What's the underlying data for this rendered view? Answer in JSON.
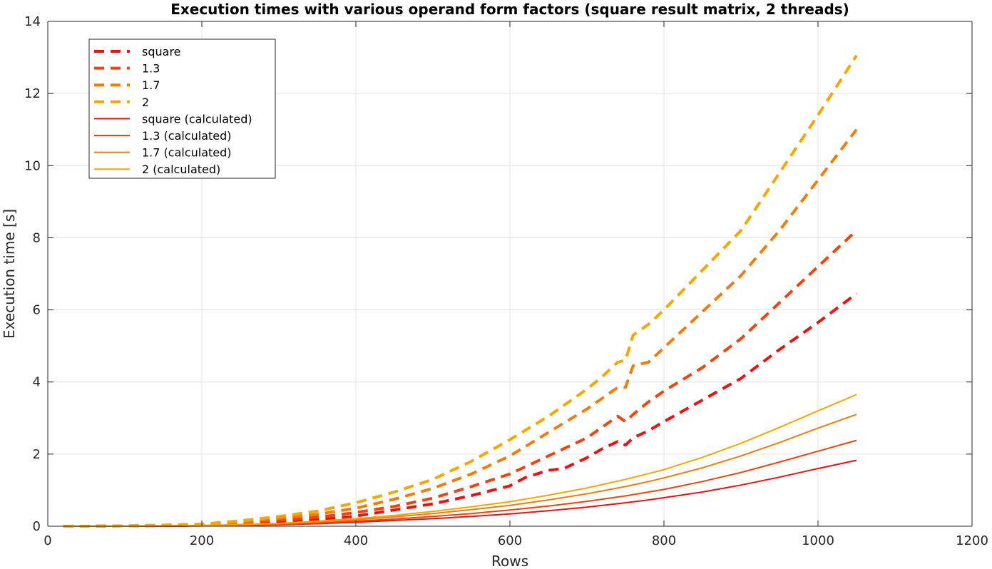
{
  "chart_data": {
    "type": "line",
    "title": "Execution times with various operand form factors (square result matrix, 2 threads)",
    "xlabel": "Rows",
    "ylabel": "Execution time [s]",
    "xlim": [
      0,
      1200
    ],
    "ylim": [
      0,
      14
    ],
    "xticks": [
      0,
      200,
      400,
      600,
      800,
      1000,
      1200
    ],
    "yticks": [
      0,
      2,
      4,
      6,
      8,
      10,
      12,
      14
    ],
    "grid": true,
    "legend_position": "top-left",
    "series": [
      {
        "name": "square",
        "style": "dashed",
        "color": "#ee1111",
        "x": [
          20,
          50,
          100,
          150,
          200,
          250,
          300,
          350,
          400,
          450,
          500,
          550,
          600,
          620,
          650,
          670,
          700,
          720,
          740,
          750,
          760,
          780,
          800,
          850,
          900,
          950,
          1000,
          1050
        ],
        "y": [
          0.0,
          0.0,
          0.01,
          0.02,
          0.03,
          0.07,
          0.12,
          0.18,
          0.28,
          0.45,
          0.62,
          0.85,
          1.12,
          1.35,
          1.55,
          1.6,
          1.9,
          2.15,
          2.35,
          2.25,
          2.45,
          2.65,
          2.9,
          3.5,
          4.1,
          4.9,
          5.65,
          6.45
        ]
      },
      {
        "name": "1.3",
        "style": "dashed",
        "color": "#ee4411",
        "x": [
          20,
          50,
          100,
          150,
          200,
          250,
          300,
          350,
          400,
          450,
          500,
          550,
          600,
          650,
          700,
          720,
          740,
          750,
          760,
          780,
          800,
          850,
          900,
          950,
          1000,
          1050
        ],
        "y": [
          0.0,
          0.0,
          0.01,
          0.02,
          0.04,
          0.09,
          0.17,
          0.25,
          0.38,
          0.55,
          0.78,
          1.1,
          1.45,
          1.95,
          2.45,
          2.75,
          3.05,
          2.9,
          3.1,
          3.45,
          3.75,
          4.4,
          5.2,
          6.2,
          7.2,
          8.2
        ]
      },
      {
        "name": "1.7",
        "style": "dashed",
        "color": "#f07c0e",
        "x": [
          20,
          50,
          100,
          150,
          200,
          250,
          300,
          350,
          400,
          450,
          500,
          550,
          600,
          650,
          700,
          720,
          740,
          750,
          760,
          780,
          800,
          850,
          900,
          950,
          1000,
          1050
        ],
        "y": [
          0.0,
          0.0,
          0.01,
          0.03,
          0.05,
          0.12,
          0.22,
          0.33,
          0.5,
          0.75,
          1.05,
          1.45,
          1.95,
          2.6,
          3.25,
          3.55,
          3.85,
          3.85,
          4.45,
          4.55,
          4.95,
          5.95,
          6.95,
          8.2,
          9.6,
          11.0
        ]
      },
      {
        "name": "2",
        "style": "dashed",
        "color": "#f5a600",
        "x": [
          20,
          50,
          100,
          150,
          200,
          250,
          300,
          350,
          400,
          450,
          500,
          550,
          600,
          650,
          700,
          720,
          740,
          750,
          760,
          780,
          800,
          850,
          900,
          950,
          1000,
          1050
        ],
        "y": [
          0.0,
          0.0,
          0.01,
          0.03,
          0.06,
          0.15,
          0.27,
          0.42,
          0.65,
          0.95,
          1.3,
          1.8,
          2.4,
          3.05,
          3.8,
          4.15,
          4.55,
          4.6,
          5.3,
          5.6,
          6.0,
          7.1,
          8.2,
          9.8,
          11.4,
          13.05
        ]
      },
      {
        "name": "square (calculated)",
        "style": "solid",
        "color": "#ee1111",
        "x": [
          20,
          50,
          100,
          150,
          200,
          250,
          300,
          350,
          400,
          450,
          500,
          550,
          600,
          650,
          700,
          750,
          780,
          800,
          850,
          900,
          950,
          1000,
          1050
        ],
        "y": [
          0.0,
          0.0,
          0.0,
          0.0,
          0.01,
          0.02,
          0.04,
          0.07,
          0.11,
          0.16,
          0.21,
          0.27,
          0.34,
          0.43,
          0.53,
          0.65,
          0.73,
          0.79,
          0.95,
          1.14,
          1.36,
          1.6,
          1.83
        ]
      },
      {
        "name": "1.3 (calculated)",
        "style": "solid",
        "color": "#ee4411",
        "x": [
          20,
          50,
          100,
          150,
          200,
          250,
          300,
          350,
          400,
          450,
          500,
          550,
          600,
          650,
          700,
          750,
          780,
          800,
          850,
          900,
          950,
          1000,
          1050
        ],
        "y": [
          0.0,
          0.0,
          0.0,
          0.0,
          0.01,
          0.03,
          0.05,
          0.09,
          0.14,
          0.2,
          0.27,
          0.35,
          0.45,
          0.56,
          0.69,
          0.84,
          0.95,
          1.02,
          1.24,
          1.49,
          1.78,
          2.08,
          2.38
        ]
      },
      {
        "name": "1.7 (calculated)",
        "style": "solid",
        "color": "#f07c0e",
        "x": [
          20,
          50,
          100,
          150,
          200,
          250,
          300,
          350,
          400,
          450,
          500,
          550,
          600,
          650,
          700,
          750,
          780,
          800,
          850,
          900,
          950,
          1000,
          1050
        ],
        "y": [
          0.0,
          0.0,
          0.0,
          0.01,
          0.02,
          0.04,
          0.07,
          0.12,
          0.18,
          0.26,
          0.35,
          0.46,
          0.58,
          0.73,
          0.9,
          1.1,
          1.24,
          1.34,
          1.62,
          1.95,
          2.32,
          2.72,
          3.1
        ]
      },
      {
        "name": "2 (calculated)",
        "style": "solid",
        "color": "#f5a600",
        "x": [
          20,
          50,
          100,
          150,
          200,
          250,
          300,
          350,
          400,
          450,
          500,
          550,
          600,
          650,
          700,
          750,
          780,
          800,
          850,
          900,
          950,
          1000,
          1050
        ],
        "y": [
          0.0,
          0.0,
          0.0,
          0.01,
          0.02,
          0.05,
          0.08,
          0.14,
          0.21,
          0.3,
          0.41,
          0.54,
          0.68,
          0.86,
          1.06,
          1.3,
          1.46,
          1.57,
          1.91,
          2.3,
          2.74,
          3.2,
          3.65
        ]
      }
    ]
  }
}
